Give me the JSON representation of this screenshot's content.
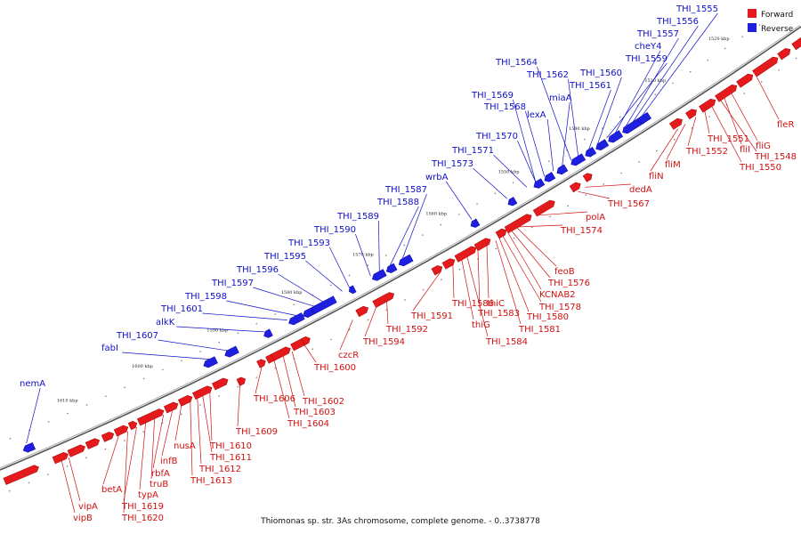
{
  "caption": "Thiomonas sp. str. 3As chromosome, complete genome. - 0..3738778",
  "legend": {
    "forward_label": "Forward",
    "reverse_label": "Reverse",
    "forward_color": "#e41a1c",
    "reverse_color": "#1f1fe0"
  },
  "ticks": [
    "1520 kbp",
    "1530 kbp",
    "1540 kbp",
    "1550 kbp",
    "1560 kbp",
    "1570 kbp",
    "1580 kbp",
    "1590 kbp",
    "1600 kbp",
    "1610 kbp"
  ],
  "forward_labels": [
    "fleR",
    "fliG",
    "fliI",
    "THI_1548",
    "THI_1550",
    "THI_1551",
    "THI_1552",
    "fliM",
    "fliN",
    "dedA",
    "THI_1567",
    "polA",
    "THI_1574",
    "feoB",
    "THI_1576",
    "KCNAB2",
    "THI_1578",
    "THI_1580",
    "THI_1581",
    "thiC",
    "THI_1583",
    "THI_1584",
    "THI_1586",
    "thiG",
    "THI_1591",
    "THI_1592",
    "THI_1594",
    "czcR",
    "THI_1600",
    "THI_1602",
    "THI_1603",
    "THI_1604",
    "THI_1606",
    "THI_1609",
    "THI_1610",
    "THI_1611",
    "THI_1612",
    "THI_1613",
    "nusA",
    "infB",
    "rbfA",
    "truB",
    "typA",
    "THI_1619",
    "THI_1620",
    "betA",
    "vipA",
    "vipB"
  ],
  "reverse_labels": [
    "THI_1555",
    "THI_1556",
    "THI_1557",
    "cheY4",
    "THI_1559",
    "THI_1560",
    "THI_1561",
    "THI_1562",
    "THI_1564",
    "miaA",
    "THI_1568",
    "lexA",
    "THI_1569",
    "THI_1570",
    "THI_1571",
    "THI_1573",
    "wrbA",
    "THI_1587",
    "THI_1588",
    "THI_1589",
    "THI_1590",
    "THI_1593",
    "THI_1595",
    "THI_1596",
    "THI_1597",
    "THI_1598",
    "THI_1601",
    "alkK",
    "THI_1607",
    "fabI",
    "nemA"
  ]
}
